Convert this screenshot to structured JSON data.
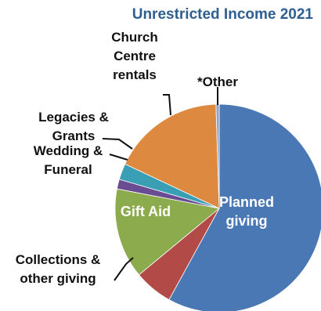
{
  "chart_data": {
    "type": "pie",
    "title": "Unrestricted Income 2021",
    "slices": [
      {
        "label": "Planned giving",
        "label_lines": [
          "Planned",
          "giving"
        ],
        "value": 58.0,
        "color": "#4a78b4"
      },
      {
        "label": "Collections & other giving",
        "label_lines": [
          "Collections &",
          "other giving"
        ],
        "value": 6.0,
        "color": "#b24a47"
      },
      {
        "label": "Gift Aid",
        "label_lines": [
          "Gift Aid"
        ],
        "value": 14.0,
        "color": "#8cab4d"
      },
      {
        "label": "Wedding & Funeral",
        "label_lines": [
          "Wedding &",
          "Funeral"
        ],
        "value": 1.5,
        "color": "#6a4c93"
      },
      {
        "label": "Legacies & Grants",
        "label_lines": [
          "Legacies &",
          "Grants"
        ],
        "value": 2.5,
        "color": "#3a9fb5"
      },
      {
        "label": "Church Centre rentals",
        "label_lines": [
          "Church",
          "Centre",
          "rentals"
        ],
        "value": 17.5,
        "color": "#dd8a40"
      },
      {
        "label": "*Other",
        "label_lines": [
          "*Other"
        ],
        "value": 0.5,
        "color": "#8aa4cc"
      }
    ]
  }
}
